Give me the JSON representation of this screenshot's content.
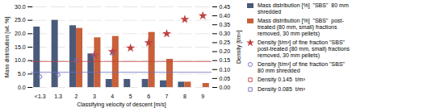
{
  "chart_data": {
    "type": "bar",
    "xlabel": "Classifying velocity of descent [m/s]",
    "ylabel": "Mass distribution [wt. %]",
    "y2label": "Density [t/m³]",
    "categories": [
      "<1.3",
      "1.3",
      "2",
      "3",
      "4",
      "5",
      "6",
      "7",
      "8",
      "9"
    ],
    "series": [
      {
        "name": "Mass distribution [%]  \"SBS\"  80 mm\nshredded",
        "type": "bar",
        "color": "#4a5a7a",
        "values": [
          22.5,
          25.0,
          23.0,
          12.5,
          3.0,
          3.0,
          3.0,
          2.5,
          2.0,
          0
        ]
      },
      {
        "name": "Mass distribution [%]  \"SBS\"  post-\ntreated (80 mm, small) fractions\nremoved, 30 mm pellets)",
        "type": "bar",
        "color": "#c8603a",
        "values": [
          0,
          0,
          22.0,
          18.5,
          19.0,
          0,
          20.5,
          10.5,
          2.0,
          1.5
        ]
      },
      {
        "name": "Density [t/m³] of fine fraction \"SBS\"\npost-treated (80 mm, small) fractions\nremoved, 30 mm pellets)",
        "type": "scatter",
        "axis": "y2",
        "color": "#c04040",
        "marker": "star",
        "values": [
          null,
          null,
          null,
          0.18,
          0.2,
          0.22,
          0.25,
          0.3,
          0.38,
          0.4
        ]
      },
      {
        "name": "Density [t/m³] of fine fraction \"SBS\"\n80 mm shredded",
        "type": "scatter",
        "axis": "y2",
        "color": "#7070c0",
        "marker": "open_circle",
        "values": [
          0.06,
          0.07,
          0.15,
          0.18,
          0.19,
          null,
          null,
          null,
          null,
          null
        ]
      },
      {
        "name": "Density 0.145  t/m³",
        "type": "hline",
        "axis": "y2",
        "color": "#c04040",
        "marker": "open_square",
        "value": 0.145
      },
      {
        "name": "Density 0.085  t/m³",
        "type": "hline",
        "axis": "y2",
        "color": "#7070c0",
        "marker": "open_square",
        "value": 0.085
      }
    ],
    "ylim": [
      0.0,
      30.0
    ],
    "yticks": [
      {
        "value": 0.0,
        "label": "0.0"
      },
      {
        "value": 5.0,
        "label": "5.0"
      },
      {
        "value": 10.0,
        "label": "10.0"
      },
      {
        "value": 15.0,
        "label": "15.0"
      },
      {
        "value": 20.0,
        "label": "20.0"
      },
      {
        "value": 25.0,
        "label": "25.0"
      },
      {
        "value": 30.0,
        "label": "30.0"
      }
    ],
    "y2lim": [
      0.0,
      0.45
    ],
    "y2ticks": [
      {
        "value": 0.0,
        "label": "0.00"
      },
      {
        "value": 0.05,
        "label": "0.05"
      },
      {
        "value": 0.1,
        "label": "0.10"
      },
      {
        "value": 0.15,
        "label": "0.15"
      },
      {
        "value": 0.2,
        "label": "0.20"
      },
      {
        "value": 0.25,
        "label": "0.25"
      },
      {
        "value": 0.3,
        "label": "0.30"
      },
      {
        "value": 0.35,
        "label": "0.35"
      },
      {
        "value": 0.4,
        "label": "0.40"
      },
      {
        "value": 0.45,
        "label": "0.45"
      }
    ],
    "grid": true,
    "legend": "right"
  }
}
